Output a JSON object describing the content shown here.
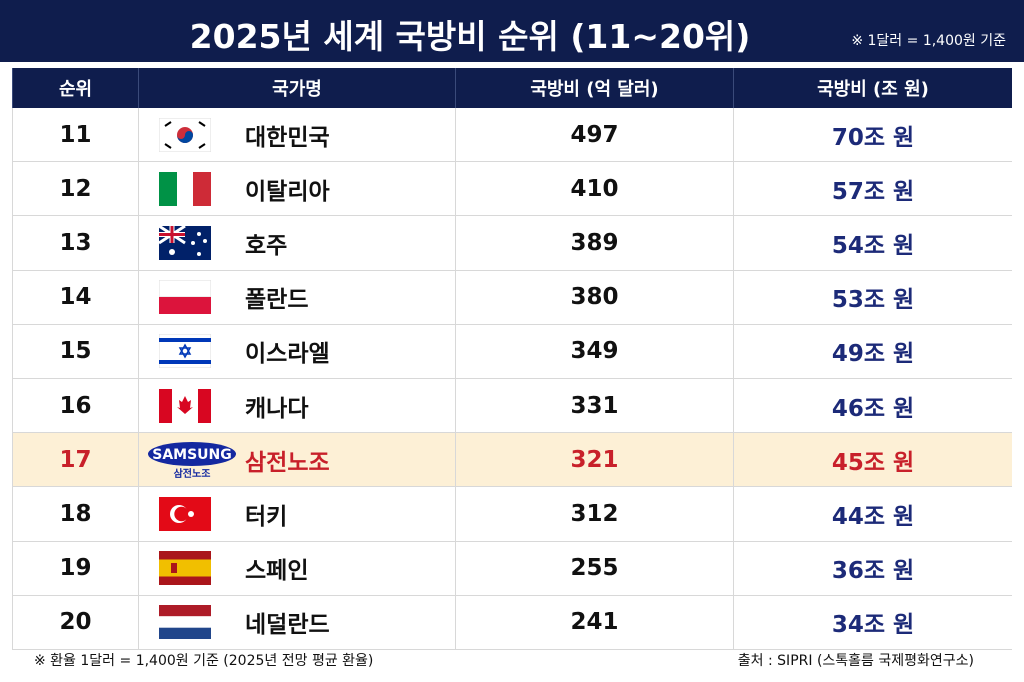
{
  "header": {
    "title": "2025년 세계 국방비 순위 (11~20위)",
    "note": "※ 1달러 = 1,400원 기준"
  },
  "table": {
    "columns": [
      "순위",
      "국가명",
      "국방비 (억 달러)",
      "국방비 (조 원)"
    ],
    "rows": [
      {
        "rank": 11,
        "country": "대한민국",
        "usd": 497,
        "krw": "70조 원"
      },
      {
        "rank": 12,
        "country": "이탈리아",
        "usd": 410,
        "krw": "57조 원"
      },
      {
        "rank": 13,
        "country": "호주",
        "usd": 389,
        "krw": "54조 원"
      },
      {
        "rank": 14,
        "country": "폴란드",
        "usd": 380,
        "krw": "53조 원"
      },
      {
        "rank": 15,
        "country": "이스라엘",
        "usd": 349,
        "krw": "49조 원"
      },
      {
        "rank": 16,
        "country": "캐나다",
        "usd": 331,
        "krw": "46조 원"
      },
      {
        "rank": 17,
        "country": "삼전노조",
        "usd": 321,
        "krw": "45조 원",
        "logo": {
          "name": "SAMSUNG",
          "sub": "삼전노조"
        }
      },
      {
        "rank": 18,
        "country": "터키",
        "usd": 312,
        "krw": "44조 원"
      },
      {
        "rank": 19,
        "country": "스페인",
        "usd": 255,
        "krw": "36조 원"
      },
      {
        "rank": 20,
        "country": "네덜란드",
        "usd": 241,
        "krw": "34조 원"
      }
    ]
  },
  "footer": {
    "left": "※ 환율 1달러 = 1,400원 기준 (2025년 전망 평균 환율)",
    "right": "출처 : SIPRI (스톡홀름 국제평화연구소)"
  }
}
